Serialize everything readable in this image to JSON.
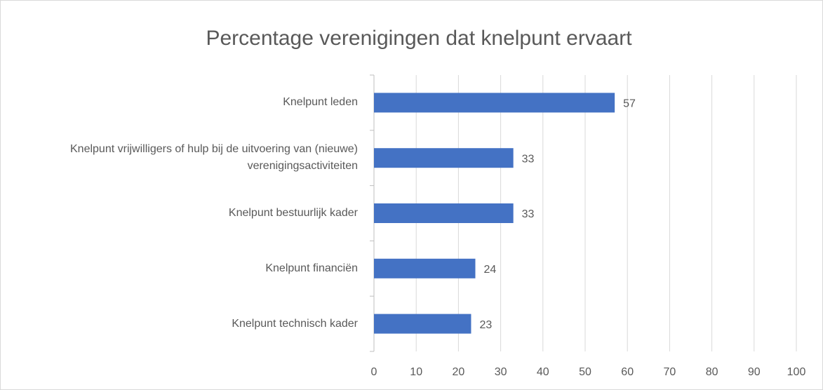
{
  "chart_data": {
    "type": "bar",
    "orientation": "horizontal",
    "title": "Percentage verenigingen dat knelpunt ervaart",
    "categories": [
      "Knelpunt leden",
      "Knelpunt vrijwilligers of hulp bij de uitvoering van (nieuwe) verenigingsactiviteiten",
      "Knelpunt bestuurlijk kader",
      "Knelpunt financiën",
      "Knelpunt technisch kader"
    ],
    "values": [
      57,
      33,
      33,
      24,
      23
    ],
    "color": "#4472c4",
    "xlim": [
      0,
      100
    ],
    "xticks": [
      0,
      10,
      20,
      30,
      40,
      50,
      60,
      70,
      80,
      90,
      100
    ],
    "grid": true
  }
}
